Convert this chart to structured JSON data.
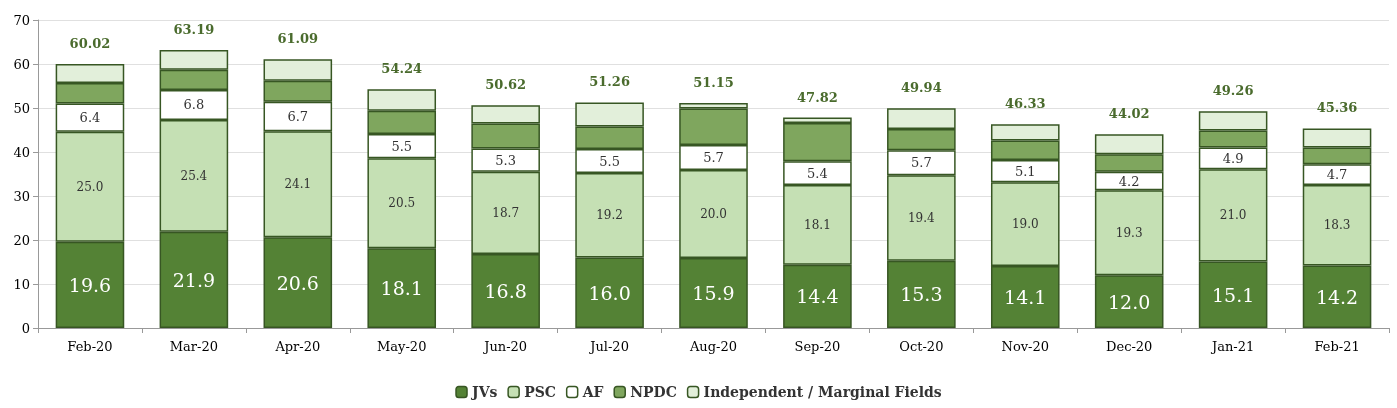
{
  "chart_data": {
    "type": "bar",
    "stacked": true,
    "categories": [
      "Feb-20",
      "Mar-20",
      "Apr-20",
      "May-20",
      "Jun-20",
      "Jul-20",
      "Aug-20",
      "Sep-20",
      "Oct-20",
      "Nov-20",
      "Dec-20",
      "Jan-21",
      "Feb-21"
    ],
    "series": [
      {
        "name": "JVs",
        "color": "#548235",
        "values": [
          19.6,
          21.9,
          20.6,
          18.1,
          16.8,
          16.0,
          15.9,
          14.4,
          15.3,
          14.1,
          12.0,
          15.1,
          14.2
        ],
        "value_labels": [
          "19.6",
          "21.9",
          "20.6",
          "18.1",
          "16.8",
          "16.0",
          "15.9",
          "14.4",
          "15.3",
          "14.1",
          "12.0",
          "15.1",
          "14.2"
        ]
      },
      {
        "name": "PSC",
        "color": "#c5e0b4",
        "values": [
          25.0,
          25.4,
          24.1,
          20.5,
          18.7,
          19.2,
          20.0,
          18.1,
          19.4,
          19.0,
          19.3,
          21.0,
          18.3
        ],
        "value_labels": [
          "25.0",
          "25.4",
          "24.1",
          "20.5",
          "18.7",
          "19.2",
          "20.0",
          "18.1",
          "19.4",
          "19.0",
          "19.3",
          "21.0",
          "18.3"
        ]
      },
      {
        "name": "AF",
        "color": "#ffffff",
        "values": [
          6.4,
          6.8,
          6.7,
          5.5,
          5.3,
          5.5,
          5.7,
          5.4,
          5.7,
          5.1,
          4.2,
          4.9,
          4.7
        ],
        "value_labels": [
          "6.4",
          "6.8",
          "6.7",
          "5.5",
          "5.3",
          "5.5",
          "5.7",
          "5.4",
          "5.7",
          "5.1",
          "4.2",
          "4.9",
          "4.7"
        ]
      },
      {
        "name": "NPDC",
        "color": "#7fa65e",
        "values": [
          4.7,
          4.6,
          4.8,
          5.3,
          5.7,
          5.1,
          8.3,
          8.7,
          4.8,
          4.4,
          4.0,
          3.9,
          3.8
        ]
      },
      {
        "name": "Independent / Marginal Fields",
        "color": "#e2efda",
        "values": [
          4.32,
          4.49,
          4.89,
          4.84,
          4.12,
          5.46,
          1.25,
          1.22,
          4.74,
          3.73,
          4.52,
          4.36,
          4.36
        ]
      }
    ],
    "totals": [
      "60.02",
      "63.19",
      "61.09",
      "54.24",
      "50.62",
      "51.26",
      "51.15",
      "47.82",
      "49.94",
      "46.33",
      "44.02",
      "49.26",
      "45.36"
    ],
    "ylim": [
      0,
      70
    ],
    "yticks": [
      0,
      10,
      20,
      30,
      40,
      50,
      60,
      70
    ],
    "grid": "y",
    "legend": "bottom"
  }
}
